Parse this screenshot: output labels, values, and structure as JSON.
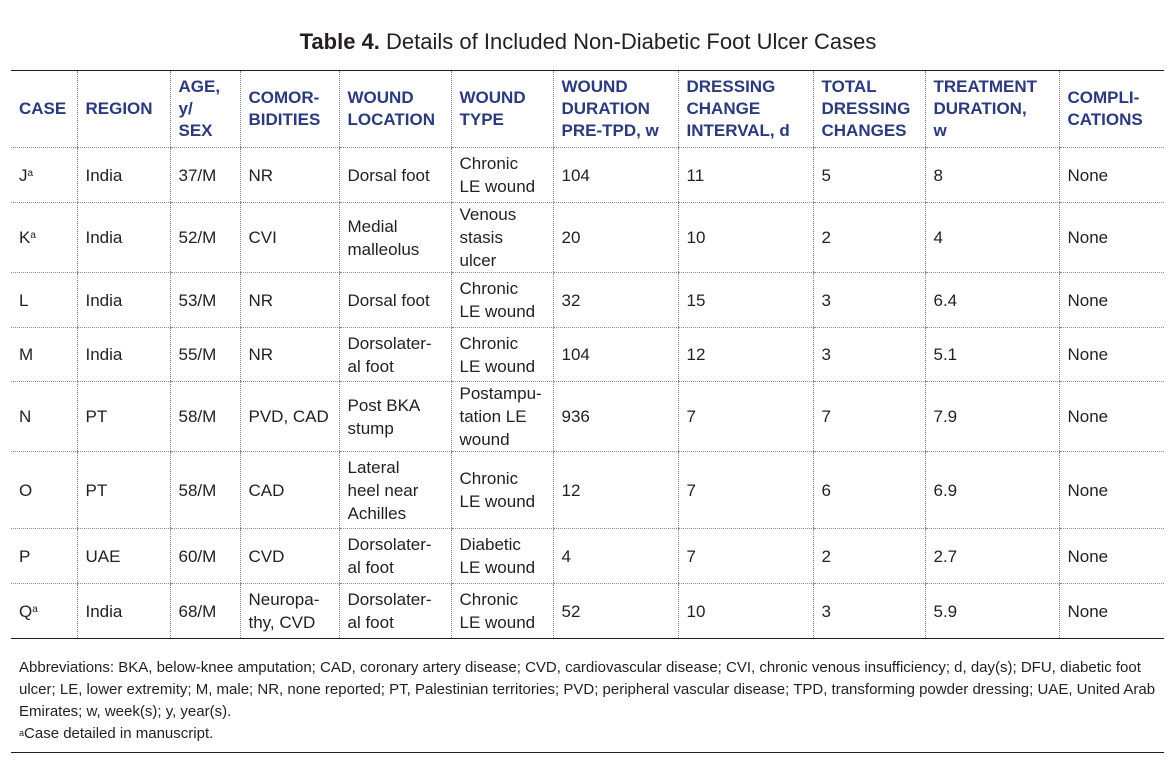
{
  "table": {
    "label": "Table 4.",
    "caption": "Details of Included Non-Diabetic Foot Ulcer Cases",
    "columns": [
      "CASE",
      "REGION",
      "AGE,\ny/\nSEX",
      "COMOR-\nBIDITIES",
      "WOUND\nLOCATION",
      "WOUND\nTYPE",
      "WOUND\nDURATION\nPRE-TPD, w",
      "DRESSING\nCHANGE\nINTERVAL, d",
      "TOTAL\nDRESSING\nCHANGES",
      "TREATMENT\nDURATION,\nw",
      "COMPLI-\nCATIONS"
    ],
    "rows": [
      {
        "case": "J",
        "sup": "a",
        "cells": [
          "India",
          "37/M",
          "NR",
          "Dorsal foot",
          "Chronic\nLE wound",
          "104",
          "11",
          "5",
          "8",
          "None"
        ]
      },
      {
        "case": "K",
        "sup": "a",
        "cells": [
          "India",
          "52/M",
          "CVI",
          "Medial\nmalleolus",
          "Venous\nstasis\nulcer",
          "20",
          "10",
          "2",
          "4",
          "None"
        ]
      },
      {
        "case": "L",
        "sup": "",
        "cells": [
          "India",
          "53/M",
          "NR",
          "Dorsal foot",
          "Chronic\nLE wound",
          "32",
          "15",
          "3",
          "6.4",
          "None"
        ]
      },
      {
        "case": "M",
        "sup": "",
        "cells": [
          "India",
          "55/M",
          "NR",
          "Dorsolater-\nal foot",
          "Chronic\nLE wound",
          "104",
          "12",
          "3",
          "5.1",
          "None"
        ]
      },
      {
        "case": "N",
        "sup": "",
        "cells": [
          "PT",
          "58/M",
          "PVD, CAD",
          "Post BKA\nstump",
          "Postampu-\ntation LE\nwound",
          "936",
          "7",
          "7",
          "7.9",
          "None"
        ]
      },
      {
        "case": "O",
        "sup": "",
        "cells": [
          "PT",
          "58/M",
          "CAD",
          "Lateral\nheel near\nAchilles",
          "Chronic\nLE wound",
          "12",
          "7",
          "6",
          "6.9",
          "None"
        ]
      },
      {
        "case": "P",
        "sup": "",
        "cells": [
          "UAE",
          "60/M",
          "CVD",
          "Dorsolater-\nal foot",
          "Diabetic\nLE wound",
          "4",
          "7",
          "2",
          "2.7",
          "None"
        ]
      },
      {
        "case": "Q",
        "sup": "a",
        "cells": [
          "India",
          "68/M",
          "Neuropa-\nthy, CVD",
          "Dorsolater-\nal foot",
          "Chronic\nLE wound",
          "52",
          "10",
          "3",
          "5.9",
          "None"
        ]
      }
    ]
  },
  "notes": {
    "abbreviations": "Abbreviations: BKA, below-knee amputation; CAD, coronary artery disease; CVD, cardiovascular disease; CVI, chronic venous insufficiency; d, day(s); DFU, diabetic foot ulcer; LE, lower extremity; M, male; NR, none reported; PT, Palestinian territories; PVD; peripheral vascular disease; TPD, transforming powder dressing; UAE, United Arab Emirates; w, week(s); y, year(s).",
    "footnote_mark": "a",
    "footnote_text": "Case detailed in manuscript."
  }
}
